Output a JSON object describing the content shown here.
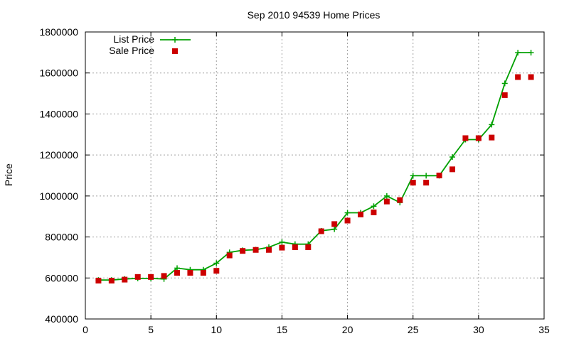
{
  "chart_data": {
    "type": "line",
    "title": "Sep 2010 94539 Home Prices",
    "xlabel": "",
    "ylabel": "Price",
    "xlim": [
      0,
      35
    ],
    "ylim": [
      400000,
      1800000
    ],
    "x_ticks": [
      "0",
      "5",
      "10",
      "15",
      "20",
      "25",
      "30",
      "35"
    ],
    "y_ticks": [
      "400000",
      "600000",
      "800000",
      "1000000",
      "1200000",
      "1400000",
      "1600000",
      "1800000"
    ],
    "grid": true,
    "legend_position": "top-left",
    "series": [
      {
        "name": "List Price",
        "style": "line-with-plus-markers",
        "color": "#00a000",
        "points": [
          [
            1,
            590000
          ],
          [
            2,
            590000
          ],
          [
            3,
            595000
          ],
          [
            4,
            598000
          ],
          [
            5,
            598000
          ],
          [
            6,
            595000
          ],
          [
            7,
            648000
          ],
          [
            8,
            640000
          ],
          [
            9,
            640000
          ],
          [
            10,
            672000
          ],
          [
            11,
            725000
          ],
          [
            12,
            735000
          ],
          [
            13,
            738000
          ],
          [
            14,
            750000
          ],
          [
            15,
            775000
          ],
          [
            16,
            765000
          ],
          [
            17,
            765000
          ],
          [
            18,
            830000
          ],
          [
            19,
            838000
          ],
          [
            20,
            918000
          ],
          [
            21,
            918000
          ],
          [
            22,
            950000
          ],
          [
            23,
            1000000
          ],
          [
            24,
            968000
          ],
          [
            25,
            1099000
          ],
          [
            26,
            1099000
          ],
          [
            27,
            1099000
          ],
          [
            28,
            1190000
          ],
          [
            29,
            1275000
          ],
          [
            30,
            1275000
          ],
          [
            31,
            1348000
          ],
          [
            32,
            1549000
          ],
          [
            33,
            1699000
          ],
          [
            34,
            1699000
          ]
        ]
      },
      {
        "name": "Sale Price",
        "style": "square-markers",
        "color": "#cc0000",
        "points": [
          [
            1,
            587000
          ],
          [
            2,
            587000
          ],
          [
            3,
            592000
          ],
          [
            4,
            605000
          ],
          [
            5,
            605000
          ],
          [
            6,
            610000
          ],
          [
            7,
            625000
          ],
          [
            8,
            625000
          ],
          [
            9,
            625000
          ],
          [
            10,
            635000
          ],
          [
            11,
            710000
          ],
          [
            12,
            732000
          ],
          [
            13,
            737000
          ],
          [
            14,
            737000
          ],
          [
            15,
            748000
          ],
          [
            16,
            750000
          ],
          [
            17,
            750000
          ],
          [
            18,
            828000
          ],
          [
            19,
            863000
          ],
          [
            20,
            880000
          ],
          [
            21,
            910000
          ],
          [
            22,
            920000
          ],
          [
            23,
            973000
          ],
          [
            24,
            980000
          ],
          [
            25,
            1065000
          ],
          [
            26,
            1065000
          ],
          [
            27,
            1100000
          ],
          [
            28,
            1130000
          ],
          [
            29,
            1282000
          ],
          [
            30,
            1282000
          ],
          [
            31,
            1285000
          ],
          [
            32,
            1492000
          ],
          [
            33,
            1580000
          ],
          [
            34,
            1580000
          ]
        ]
      }
    ]
  }
}
